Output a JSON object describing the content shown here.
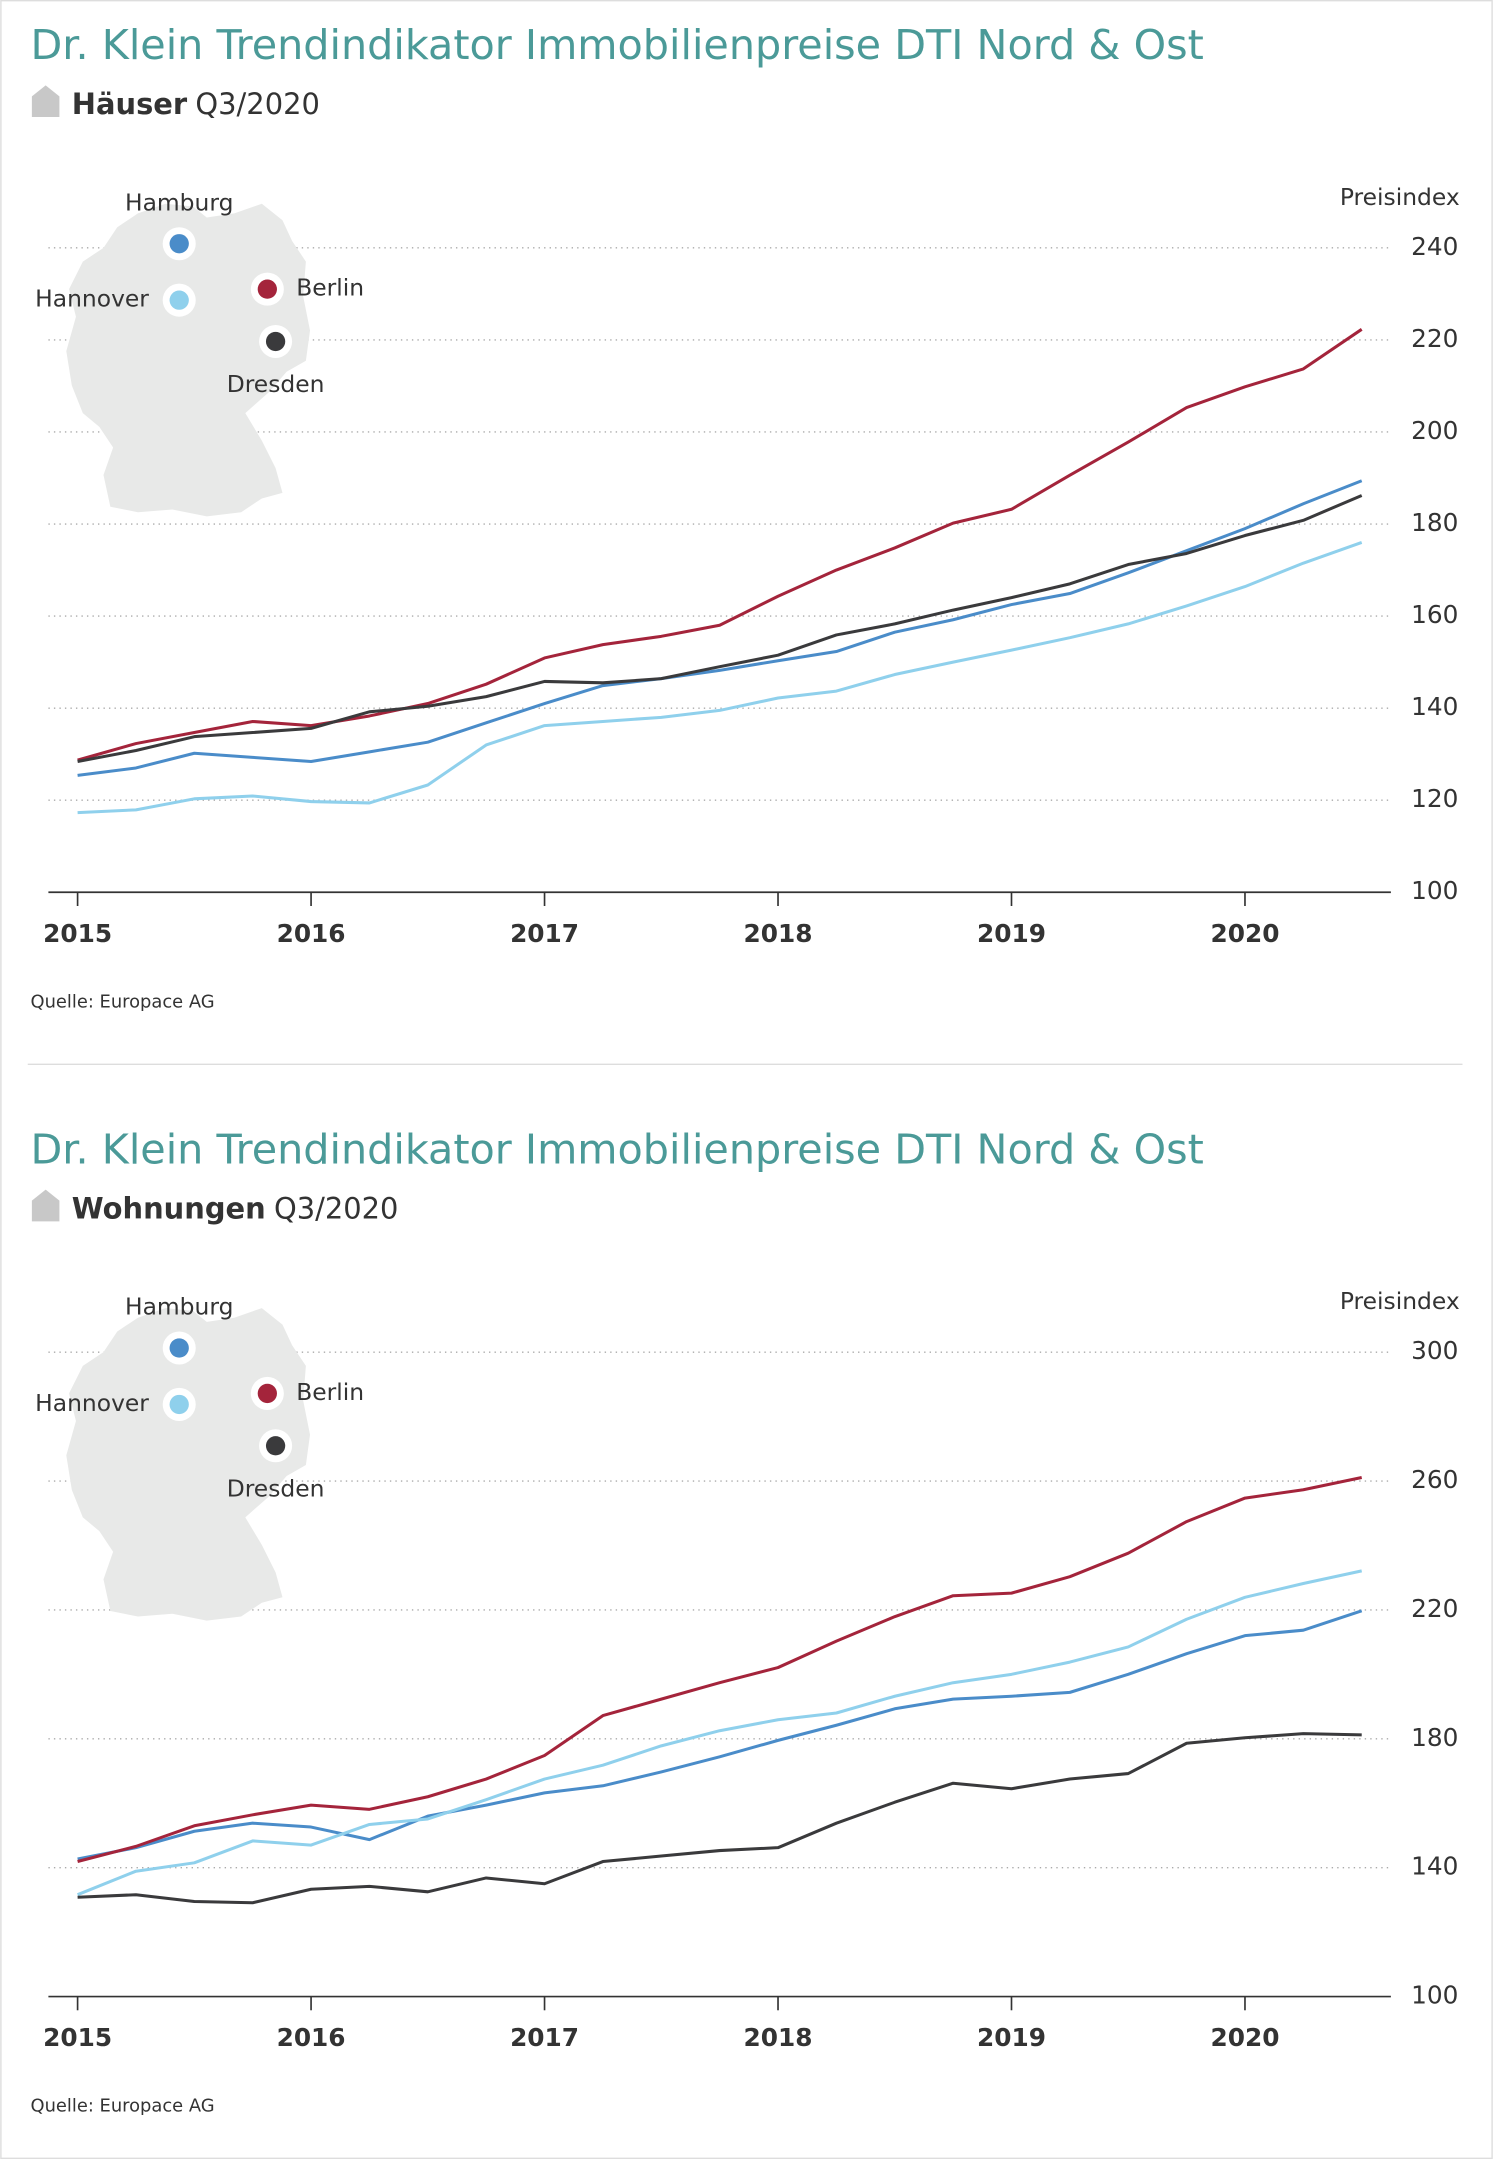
{
  "chart_data": [
    {
      "type": "line",
      "title": "Dr. Klein Trendindikator Immobilienpreise DTI Nord & Ost",
      "subtitle_bold": "Häuser",
      "subtitle": "Q3/2020",
      "y_label": "Preisindex",
      "source": "Quelle: Europace AG",
      "x": [
        2015,
        2015.25,
        2015.5,
        2015.75,
        2016,
        2016.25,
        2016.5,
        2016.75,
        2017,
        2017.25,
        2017.5,
        2017.75,
        2018,
        2018.25,
        2018.5,
        2018.75,
        2019,
        2019.25,
        2019.5,
        2019.75,
        2020,
        2020.25,
        2020.5
      ],
      "xlim": [
        2014.875,
        2020.625
      ],
      "xticks": [
        2015,
        2016,
        2017,
        2018,
        2019,
        2020
      ],
      "ylim": [
        100,
        240
      ],
      "yticks": [
        100,
        120,
        140,
        160,
        180,
        200,
        220,
        240
      ],
      "grid": true,
      "series": [
        {
          "name": "Hamburg",
          "color": "#4a8cc9",
          "values": [
            125.4,
            127,
            130.2,
            129.3,
            128.4,
            130.5,
            132.6,
            136.8,
            141,
            144.9,
            146.4,
            148.2,
            150.3,
            152.3,
            156.5,
            159.2,
            162.5,
            164.9,
            169.4,
            174.2,
            179,
            184.4,
            189.4
          ]
        },
        {
          "name": "Hannover",
          "color": "#8fd0ec",
          "values": [
            117.3,
            117.9,
            120.3,
            120.9,
            119.7,
            119.4,
            123.3,
            132,
            136.2,
            137.1,
            138,
            139.5,
            142.2,
            143.7,
            147.3,
            150,
            152.6,
            155.3,
            158.3,
            162.2,
            166.4,
            171.5,
            176
          ]
        },
        {
          "name": "Berlin",
          "color": "#a4243b",
          "values": [
            128.7,
            132.3,
            134.7,
            137.1,
            136.2,
            138.3,
            141,
            145.2,
            150.9,
            153.8,
            155.6,
            158,
            164.3,
            170,
            174.8,
            180.2,
            183.2,
            190.6,
            197.8,
            205.3,
            209.8,
            213.7,
            222.3
          ]
        },
        {
          "name": "Dresden",
          "color": "#3a3a3c",
          "values": [
            128.4,
            130.8,
            133.8,
            134.7,
            135.6,
            139.2,
            140.4,
            142.5,
            145.8,
            145.5,
            146.4,
            149,
            151.5,
            155.9,
            158.3,
            161.3,
            164,
            167,
            171.2,
            173.6,
            177.5,
            180.8,
            186.2
          ]
        }
      ]
    },
    {
      "type": "line",
      "title": "Dr. Klein Trendindikator Immobilienpreise DTI Nord & Ost",
      "subtitle_bold": "Wohnungen",
      "subtitle": "Q3/2020",
      "y_label": "Preisindex",
      "source": "Quelle: Europace AG",
      "x": [
        2015,
        2015.25,
        2015.5,
        2015.75,
        2016,
        2016.25,
        2016.5,
        2016.75,
        2017,
        2017.25,
        2017.5,
        2017.75,
        2018,
        2018.25,
        2018.5,
        2018.75,
        2019,
        2019.25,
        2019.5,
        2019.75,
        2020,
        2020.25,
        2020.5
      ],
      "xlim": [
        2014.875,
        2020.625
      ],
      "xticks": [
        2015,
        2016,
        2017,
        2018,
        2019,
        2020
      ],
      "ylim": [
        100,
        300
      ],
      "yticks": [
        100,
        140,
        180,
        220,
        260,
        300
      ],
      "grid": true,
      "series": [
        {
          "name": "Hamburg",
          "color": "#4a8cc9",
          "values": [
            142.7,
            146.2,
            151.3,
            153.8,
            152.6,
            148.7,
            156,
            159.4,
            163.2,
            165.4,
            169.7,
            174.4,
            179.5,
            184.2,
            189.3,
            192.3,
            193.2,
            194.4,
            200,
            206.4,
            212,
            213.7,
            219.7
          ]
        },
        {
          "name": "Hannover",
          "color": "#8fd0ec",
          "values": [
            131.6,
            138.9,
            141.5,
            148.3,
            147,
            153.4,
            155.1,
            161.1,
            167.5,
            171.8,
            177.8,
            182.5,
            185.9,
            188,
            193.2,
            197.4,
            200,
            203.8,
            208.5,
            217.1,
            223.9,
            228.2,
            232.1
          ]
        },
        {
          "name": "Berlin",
          "color": "#a4243b",
          "values": [
            141.9,
            146.6,
            153,
            156.4,
            159.4,
            158.1,
            162,
            167.5,
            174.8,
            187.2,
            192.3,
            197.4,
            202.1,
            210.3,
            217.9,
            224.4,
            225.2,
            230.3,
            237.6,
            247.4,
            254.7,
            257.3,
            261.1
          ]
        },
        {
          "name": "Dresden",
          "color": "#3a3a3c",
          "values": [
            130.8,
            131.6,
            129.5,
            129.1,
            133.3,
            134.2,
            132.5,
            136.8,
            135,
            141.9,
            143.6,
            145.3,
            146.2,
            153.8,
            160.3,
            166.2,
            164.5,
            167.5,
            169.2,
            178.6,
            180.3,
            181.6,
            181.2
          ]
        }
      ]
    }
  ]
}
